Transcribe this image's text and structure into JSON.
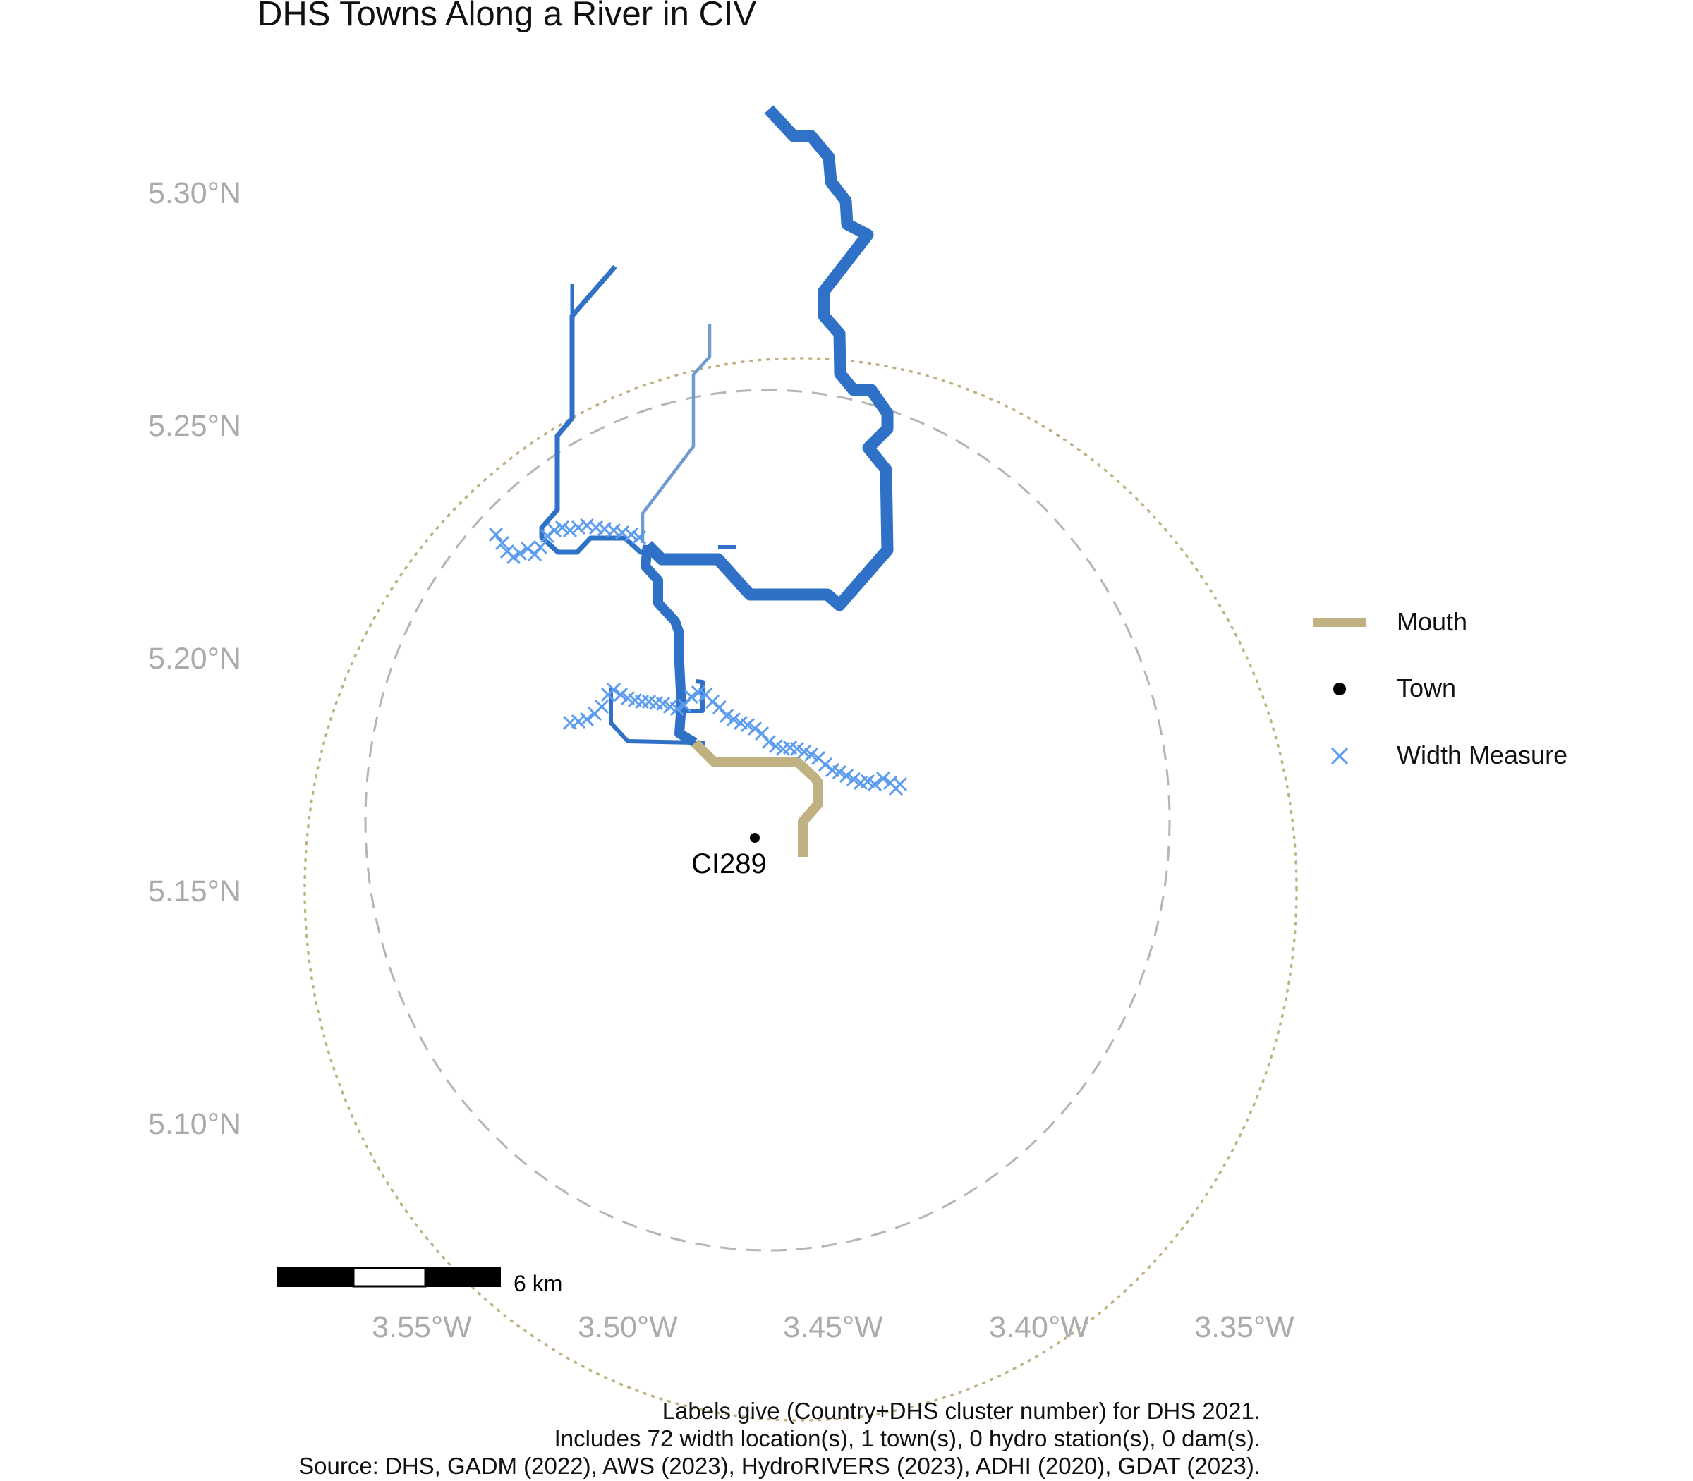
{
  "title": "DHS Towns Along a River in CIV",
  "y_axis_labels": [
    "5.30°N",
    "5.25°N",
    "5.20°N",
    "5.15°N",
    "5.10°N"
  ],
  "x_axis_labels": [
    "3.55°W",
    "3.50°W",
    "3.45°W",
    "3.40°W",
    "3.35°W"
  ],
  "town": {
    "label": "CI289"
  },
  "scale_bar": {
    "label": "6 km"
  },
  "legend": {
    "items": [
      {
        "label": "Mouth",
        "symbol": "line",
        "color": "#bfb181"
      },
      {
        "label": "Town",
        "symbol": "point",
        "color": "#000000"
      },
      {
        "label": "Width Measure",
        "symbol": "cross",
        "color": "#5b9bf0"
      }
    ]
  },
  "caption": [
    "Labels give (Country+DHS cluster number) for DHS 2021.",
    "Includes 72 width location(s), 1 town(s), 0 hydro station(s), 0 dam(s).",
    "Source: DHS, GADM (2022), AWS (2023), HydroRIVERS (2023), ADHI (2020), GDAT (2023)."
  ],
  "colors": {
    "river": "#2e71c7",
    "river_light": "#6f9ad4",
    "mouth": "#bfb181",
    "width_measure": "#5b9bf0",
    "dashed_circle": "#b5b5b5",
    "dotted_circle": "#bfb181",
    "axis_text": "#ababab"
  }
}
